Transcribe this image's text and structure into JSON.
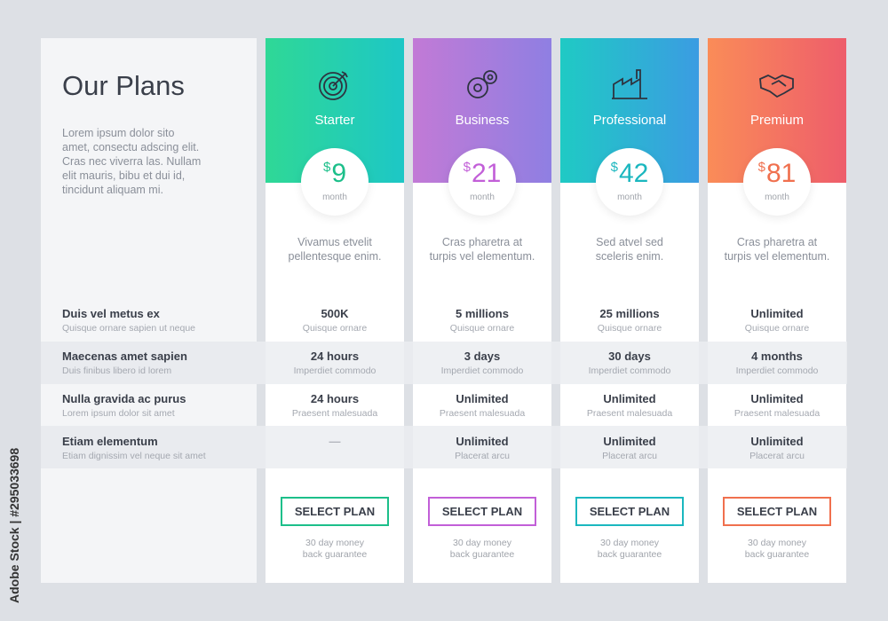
{
  "title": "Our Plans",
  "intro": "Lorem ipsum dolor sito amet, consectu adscing elit. Cras nec viverra las. Nullam elit mauris, bibu et dui id, tincidunt aliquam mi.",
  "features": [
    {
      "title": "Duis vel metus ex",
      "sub": "Quisque ornare sapien ut neque"
    },
    {
      "title": "Maecenas amet sapien",
      "sub": "Duis finibus libero id lorem"
    },
    {
      "title": "Nulla gravida ac purus",
      "sub": "Lorem ipsum dolor sit amet"
    },
    {
      "title": "Etiam elementum",
      "sub": "Etiam dignissim vel neque sit amet"
    }
  ],
  "plans": [
    {
      "name": "Starter",
      "icon": "target-icon",
      "currency": "$",
      "price": "9",
      "period": "month",
      "desc": "Vivamus etvelit pellentesque enim.",
      "gradient": [
        "#2fd896",
        "#1dc7c6"
      ],
      "accent": "#1cbf8a",
      "values": [
        {
          "t": "500K",
          "s": "Quisque ornare"
        },
        {
          "t": "24 hours",
          "s": "Imperdiet commodo"
        },
        {
          "t": "24 hours",
          "s": "Praesent malesuada"
        },
        {
          "t": "—",
          "s": ""
        }
      ],
      "button": "SELECT PLAN",
      "guarantee": "30 day money back guarantee"
    },
    {
      "name": "Business",
      "icon": "gears-icon",
      "currency": "$",
      "price": "21",
      "period": "month",
      "desc": "Cras pharetra at turpis vel elementum.",
      "gradient": [
        "#c27ad6",
        "#8f7fe2"
      ],
      "accent": "#c25fd8",
      "values": [
        {
          "t": "5 millions",
          "s": "Quisque ornare"
        },
        {
          "t": "3 days",
          "s": "Imperdiet commodo"
        },
        {
          "t": "Unlimited",
          "s": "Praesent malesuada"
        },
        {
          "t": "Unlimited",
          "s": "Placerat arcu"
        }
      ],
      "button": "SELECT PLAN",
      "guarantee": "30 day money back guarantee"
    },
    {
      "name": "Professional",
      "icon": "factory-icon",
      "currency": "$",
      "price": "42",
      "period": "month",
      "desc": "Sed atvel sed sceleris enim.",
      "gradient": [
        "#1fcac4",
        "#3b9ce2"
      ],
      "accent": "#1bb7bf",
      "values": [
        {
          "t": "25 millions",
          "s": "Quisque ornare"
        },
        {
          "t": "30 days",
          "s": "Imperdiet commodo"
        },
        {
          "t": "Unlimited",
          "s": "Praesent malesuada"
        },
        {
          "t": "Unlimited",
          "s": "Placerat arcu"
        }
      ],
      "button": "SELECT PLAN",
      "guarantee": "30 day money back guarantee"
    },
    {
      "name": "Premium",
      "icon": "handshake-icon",
      "currency": "$",
      "price": "81",
      "period": "month",
      "desc": "Cras pharetra at turpis vel elementum.",
      "gradient": [
        "#fa8c58",
        "#ee5d6b"
      ],
      "accent": "#f0704e",
      "values": [
        {
          "t": "Unlimited",
          "s": "Quisque ornare"
        },
        {
          "t": "4 months",
          "s": "Imperdiet commodo"
        },
        {
          "t": "Unlimited",
          "s": "Praesent malesuada"
        },
        {
          "t": "Unlimited",
          "s": "Placerat arcu"
        }
      ],
      "button": "SELECT PLAN",
      "guarantee": "30 day money back guarantee"
    }
  ],
  "watermark": "Adobe Stock | #295033698"
}
